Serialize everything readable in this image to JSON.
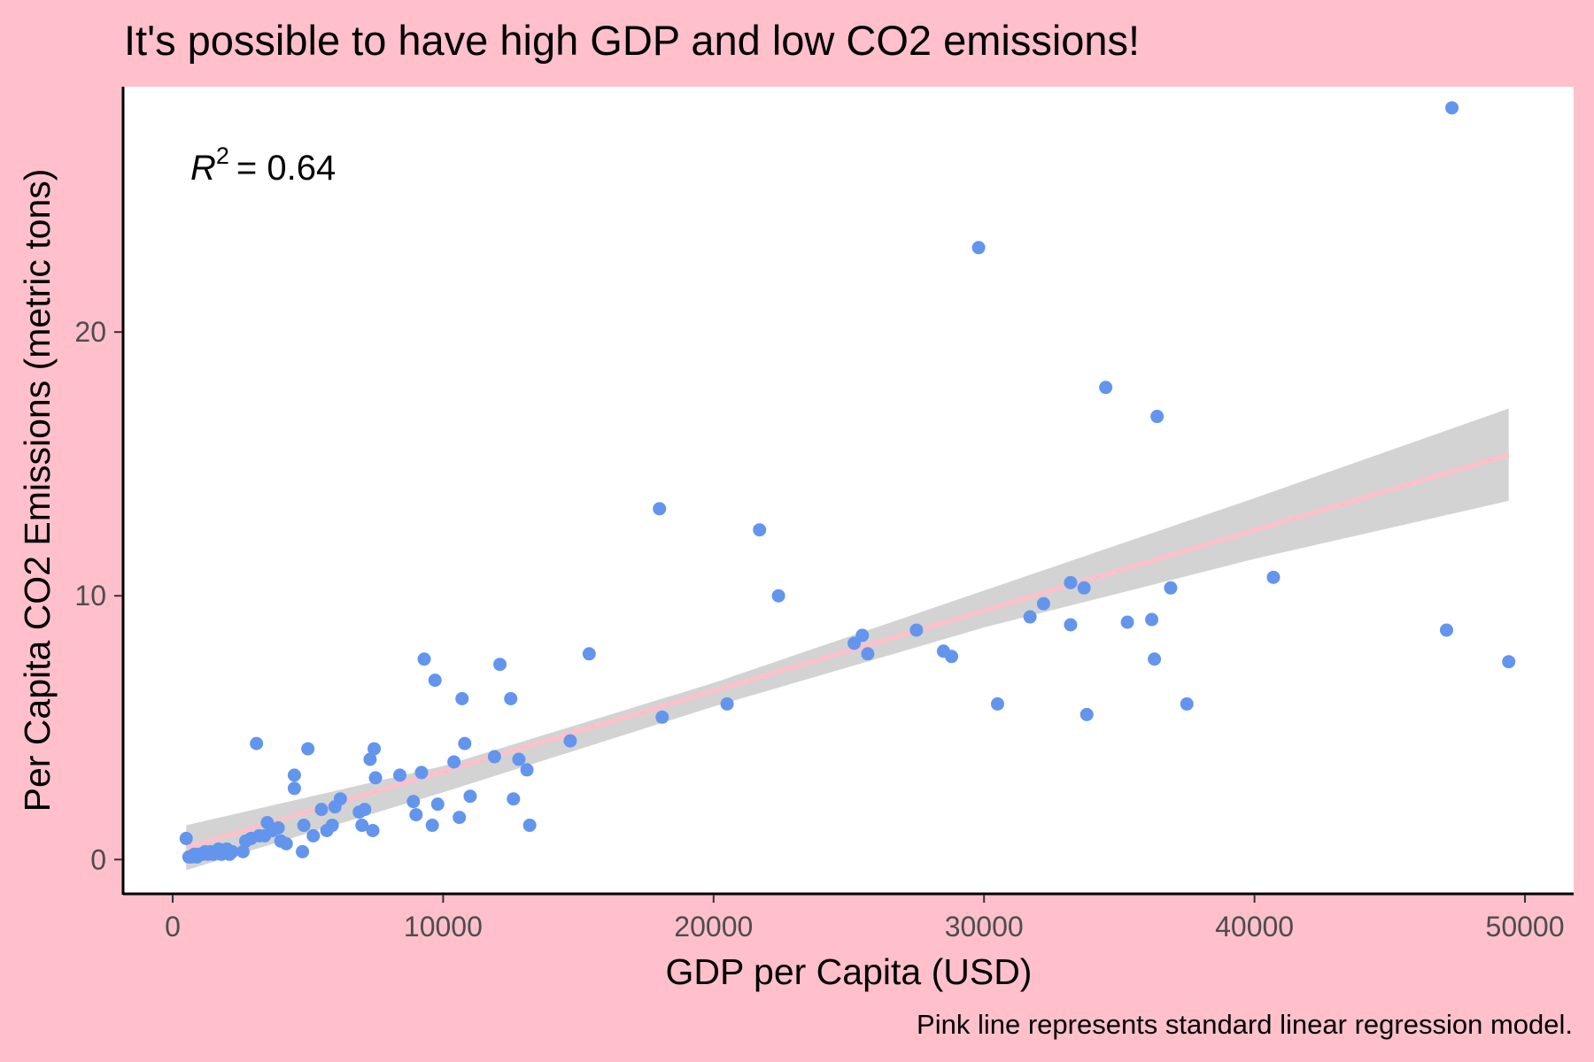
{
  "chart_data": {
    "type": "scatter",
    "title": "It's possible to have high GDP and low CO2 emissions!",
    "caption": "Pink line represents standard linear regression model.",
    "xlabel": "GDP per Capita (USD)",
    "ylabel": "Per Capita CO2 Emissions (metric tons)",
    "xlim": [
      -1800,
      51800
    ],
    "ylim": [
      -1.3,
      29.3
    ],
    "x_ticks": [
      0,
      10000,
      20000,
      30000,
      40000,
      50000
    ],
    "y_ticks": [
      0,
      10,
      20
    ],
    "grid": false,
    "annotation": {
      "r_symbol": "R",
      "r_exponent": "2",
      "r_value_text": "= 0.64"
    },
    "colors": {
      "background": "#ffc0cb",
      "panel": "#ffffff",
      "points": "#6495ed",
      "regression_line": "#ffc0cb",
      "confidence_band": "#d3d3d3"
    },
    "regression": {
      "x": [
        500,
        49400
      ],
      "y": [
        0.45,
        15.35
      ],
      "ci_x": [
        500,
        10000,
        20000,
        30000,
        40000,
        49400
      ],
      "ci_lower": [
        -0.4,
        2.55,
        5.8,
        8.8,
        11.4,
        13.6
      ],
      "ci_upper": [
        1.3,
        3.55,
        6.7,
        10.2,
        13.7,
        17.1
      ]
    },
    "points": [
      {
        "x": 500,
        "y": 0.8
      },
      {
        "x": 600,
        "y": 0.1
      },
      {
        "x": 700,
        "y": 0.1
      },
      {
        "x": 800,
        "y": 0.2
      },
      {
        "x": 900,
        "y": 0.1
      },
      {
        "x": 1000,
        "y": 0.2
      },
      {
        "x": 1100,
        "y": 0.2
      },
      {
        "x": 1200,
        "y": 0.3
      },
      {
        "x": 1300,
        "y": 0.2
      },
      {
        "x": 1400,
        "y": 0.3
      },
      {
        "x": 1500,
        "y": 0.2
      },
      {
        "x": 1600,
        "y": 0.3
      },
      {
        "x": 1700,
        "y": 0.4
      },
      {
        "x": 1800,
        "y": 0.2
      },
      {
        "x": 1900,
        "y": 0.3
      },
      {
        "x": 2000,
        "y": 0.4
      },
      {
        "x": 2100,
        "y": 0.2
      },
      {
        "x": 2200,
        "y": 0.3
      },
      {
        "x": 2600,
        "y": 0.3
      },
      {
        "x": 2700,
        "y": 0.7
      },
      {
        "x": 2900,
        "y": 0.8
      },
      {
        "x": 3100,
        "y": 4.4
      },
      {
        "x": 3200,
        "y": 0.9
      },
      {
        "x": 3400,
        "y": 0.9
      },
      {
        "x": 3500,
        "y": 1.4
      },
      {
        "x": 3700,
        "y": 1.1
      },
      {
        "x": 3900,
        "y": 1.2
      },
      {
        "x": 4000,
        "y": 0.7
      },
      {
        "x": 4200,
        "y": 0.6
      },
      {
        "x": 4500,
        "y": 3.2
      },
      {
        "x": 4500,
        "y": 2.7
      },
      {
        "x": 4800,
        "y": 0.3
      },
      {
        "x": 4850,
        "y": 1.3
      },
      {
        "x": 5000,
        "y": 4.2
      },
      {
        "x": 5200,
        "y": 0.9
      },
      {
        "x": 5500,
        "y": 1.9
      },
      {
        "x": 5700,
        "y": 1.1
      },
      {
        "x": 5900,
        "y": 1.3
      },
      {
        "x": 6000,
        "y": 2.0
      },
      {
        "x": 6200,
        "y": 2.3
      },
      {
        "x": 6900,
        "y": 1.8
      },
      {
        "x": 7000,
        "y": 1.3
      },
      {
        "x": 7100,
        "y": 1.9
      },
      {
        "x": 7300,
        "y": 3.8
      },
      {
        "x": 7400,
        "y": 1.1
      },
      {
        "x": 7450,
        "y": 4.2
      },
      {
        "x": 7500,
        "y": 3.1
      },
      {
        "x": 8400,
        "y": 3.2
      },
      {
        "x": 8900,
        "y": 2.2
      },
      {
        "x": 9000,
        "y": 1.7
      },
      {
        "x": 9200,
        "y": 3.3
      },
      {
        "x": 9300,
        "y": 7.6
      },
      {
        "x": 9600,
        "y": 1.3
      },
      {
        "x": 9700,
        "y": 6.8
      },
      {
        "x": 9800,
        "y": 2.1
      },
      {
        "x": 10400,
        "y": 3.7
      },
      {
        "x": 10600,
        "y": 1.6
      },
      {
        "x": 10700,
        "y": 6.1
      },
      {
        "x": 10800,
        "y": 4.4
      },
      {
        "x": 11000,
        "y": 2.4
      },
      {
        "x": 11900,
        "y": 3.9
      },
      {
        "x": 12100,
        "y": 7.4
      },
      {
        "x": 12500,
        "y": 6.1
      },
      {
        "x": 12600,
        "y": 2.3
      },
      {
        "x": 12800,
        "y": 3.8
      },
      {
        "x": 13100,
        "y": 3.4
      },
      {
        "x": 13200,
        "y": 1.3
      },
      {
        "x": 14700,
        "y": 4.5
      },
      {
        "x": 15400,
        "y": 7.8
      },
      {
        "x": 18000,
        "y": 13.3
      },
      {
        "x": 18100,
        "y": 5.4
      },
      {
        "x": 20500,
        "y": 5.9
      },
      {
        "x": 21700,
        "y": 12.5
      },
      {
        "x": 22400,
        "y": 10.0
      },
      {
        "x": 25200,
        "y": 8.2
      },
      {
        "x": 25500,
        "y": 8.5
      },
      {
        "x": 25700,
        "y": 7.8
      },
      {
        "x": 27500,
        "y": 8.7
      },
      {
        "x": 28500,
        "y": 7.9
      },
      {
        "x": 28800,
        "y": 7.7
      },
      {
        "x": 29800,
        "y": 23.2
      },
      {
        "x": 30500,
        "y": 5.9
      },
      {
        "x": 31700,
        "y": 9.2
      },
      {
        "x": 32200,
        "y": 9.7
      },
      {
        "x": 33200,
        "y": 10.5
      },
      {
        "x": 33200,
        "y": 8.9
      },
      {
        "x": 33700,
        "y": 10.3
      },
      {
        "x": 33800,
        "y": 5.5
      },
      {
        "x": 34500,
        "y": 17.9
      },
      {
        "x": 35300,
        "y": 9.0
      },
      {
        "x": 36200,
        "y": 9.1
      },
      {
        "x": 36300,
        "y": 7.6
      },
      {
        "x": 36400,
        "y": 16.8
      },
      {
        "x": 36900,
        "y": 10.3
      },
      {
        "x": 37500,
        "y": 5.9
      },
      {
        "x": 40700,
        "y": 10.7
      },
      {
        "x": 47100,
        "y": 8.7
      },
      {
        "x": 47300,
        "y": 28.5
      },
      {
        "x": 49400,
        "y": 7.5
      }
    ]
  }
}
